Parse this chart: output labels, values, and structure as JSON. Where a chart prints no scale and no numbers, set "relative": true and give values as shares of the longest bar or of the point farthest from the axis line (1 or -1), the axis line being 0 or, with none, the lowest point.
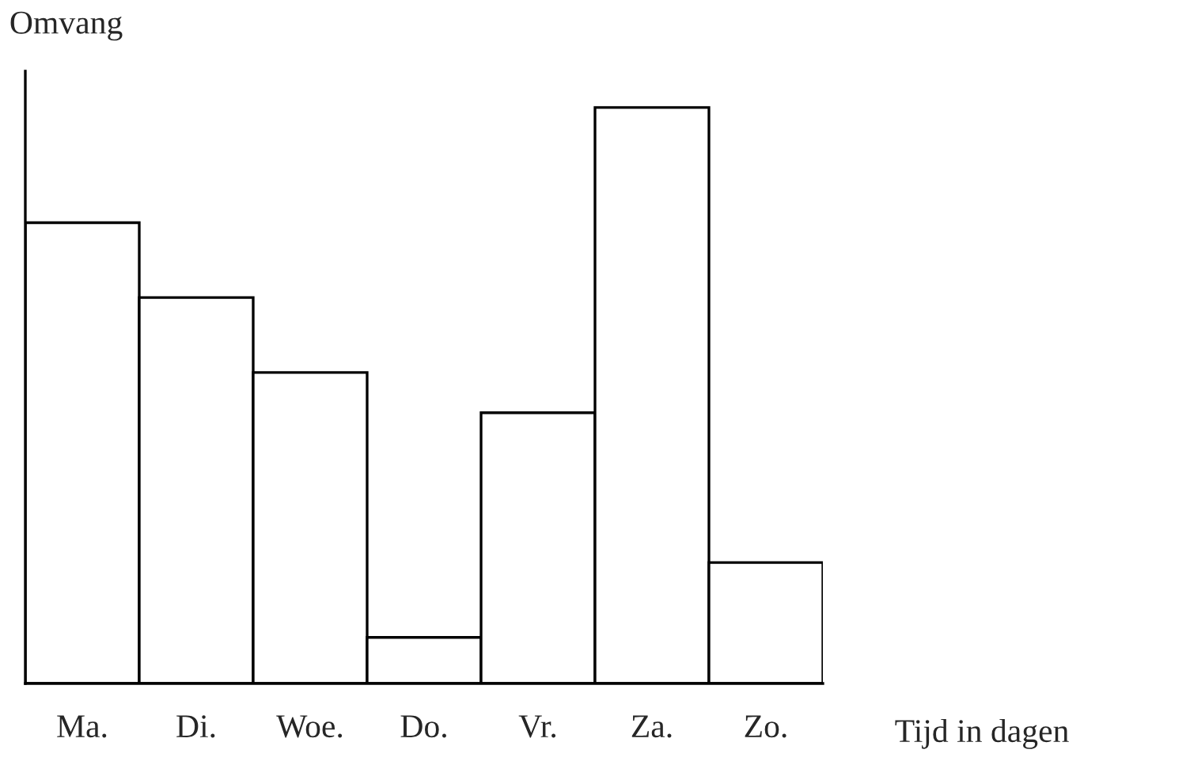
{
  "chart_data": {
    "type": "bar",
    "relative": true,
    "xlabel": "Tijd in dagen",
    "ylabel": "Omvang",
    "categories": [
      "Ma.",
      "Di.",
      "Woe.",
      "Do.",
      "Vr.",
      "Za.",
      "Zo."
    ],
    "values": [
      0.8,
      0.67,
      0.54,
      0.08,
      0.47,
      1.0,
      0.21
    ],
    "color": "#ffffff",
    "tick_labels": "x"
  }
}
